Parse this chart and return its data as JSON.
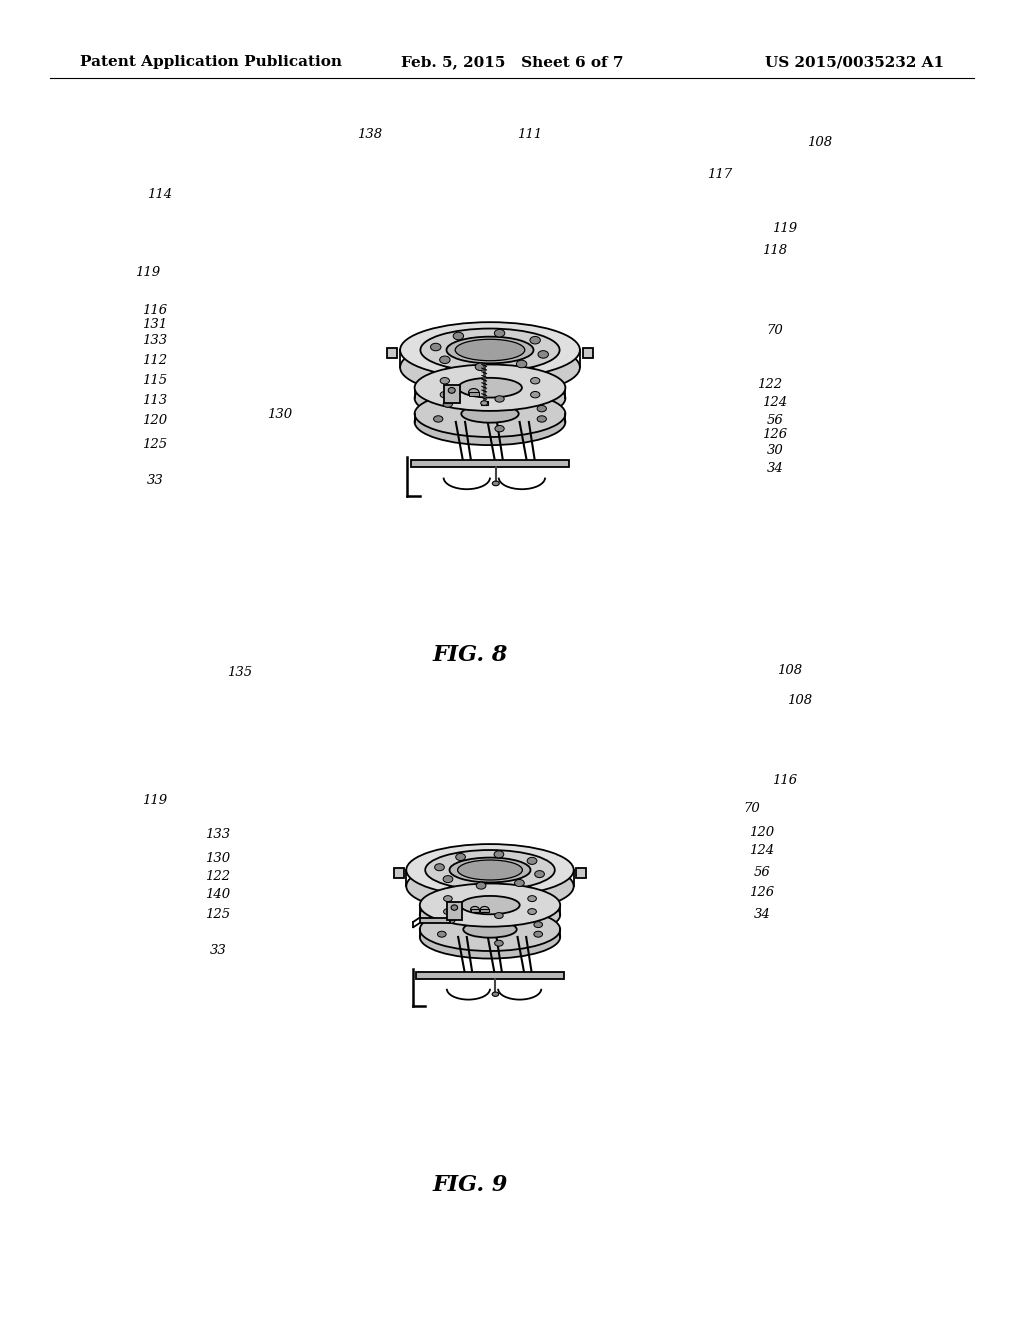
{
  "background_color": "#ffffff",
  "page_width": 10.24,
  "page_height": 13.2,
  "header": {
    "left": "Patent Application Publication",
    "center": "Feb. 5, 2015   Sheet 6 of 7",
    "right": "US 2015/0035232 A1",
    "fontsize": 11
  },
  "fig8_caption": "FIG. 8",
  "fig9_caption": "FIG. 9",
  "caption_fontsize": 16
}
